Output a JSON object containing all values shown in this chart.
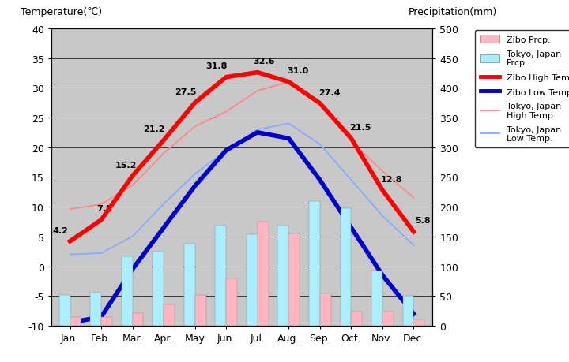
{
  "months": [
    "Jan.",
    "Feb.",
    "Mar.",
    "Apr.",
    "May",
    "Jun.",
    "Jul.",
    "Aug.",
    "Sep.",
    "Oct.",
    "Nov.",
    "Dec."
  ],
  "zibo_high_temp": [
    4.2,
    7.8,
    15.2,
    21.2,
    27.5,
    31.8,
    32.6,
    31.0,
    27.4,
    21.5,
    12.8,
    5.8
  ],
  "zibo_low_temp": [
    -9.5,
    -8.5,
    -0.5,
    6.5,
    13.5,
    19.5,
    22.5,
    21.5,
    14.5,
    6.5,
    -1.5,
    -8.0
  ],
  "tokyo_high_temp": [
    9.6,
    10.4,
    13.6,
    19.0,
    23.5,
    26.0,
    29.5,
    31.0,
    27.2,
    21.0,
    16.0,
    11.5
  ],
  "tokyo_low_temp": [
    2.0,
    2.2,
    5.0,
    10.5,
    15.5,
    19.5,
    23.0,
    24.0,
    20.5,
    14.5,
    8.5,
    3.5
  ],
  "zibo_prcp_mm": [
    14,
    14,
    21,
    36,
    52,
    80,
    175,
    155,
    55,
    24,
    24,
    11
  ],
  "tokyo_prcp_mm": [
    52,
    56,
    117,
    125,
    138,
    168,
    154,
    168,
    210,
    197,
    93,
    51
  ],
  "temp_ylim": [
    -10,
    40
  ],
  "prcp_ylim": [
    0,
    500
  ],
  "plot_bg": "#c8c8c8",
  "zibo_high_color": "#ff0000",
  "zibo_low_color": "#0000cc",
  "tokyo_high_color": "#ff8888",
  "tokyo_low_color": "#88aaff",
  "zibo_prcp_color": "#ffb6c1",
  "tokyo_prcp_color": "#aaeeff",
  "title_left": "Temperature(℃)",
  "title_right": "Precipitation(mm)",
  "figsize": [
    7.2,
    4.6
  ],
  "dpi": 100
}
